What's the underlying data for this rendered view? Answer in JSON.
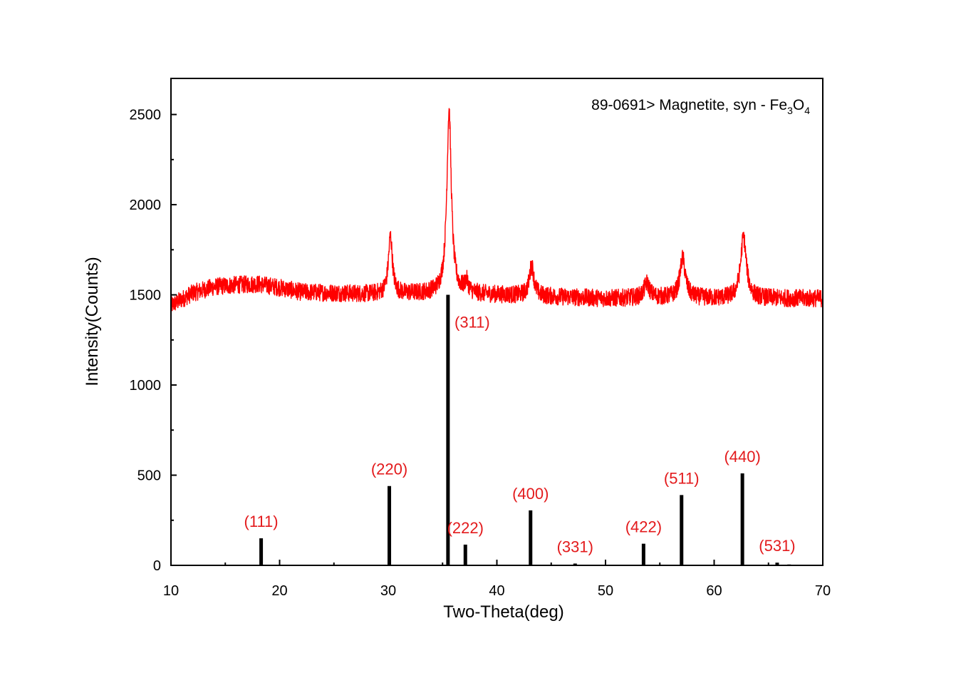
{
  "chart_data": {
    "type": "line",
    "title": "",
    "xlabel": "Two-Theta(deg)",
    "ylabel": "Intensity(Counts)",
    "xlim": [
      10,
      70
    ],
    "ylim": [
      0,
      2600
    ],
    "x_ticks": [
      10,
      20,
      30,
      40,
      50,
      60,
      70
    ],
    "x_tick_labels": [
      "10",
      "20",
      "30",
      "40",
      "50",
      "60",
      "70"
    ],
    "y_ticks": [
      0,
      500,
      1000,
      1500,
      2000,
      2500
    ],
    "y_tick_labels": [
      "0",
      "500",
      "1000",
      "1500",
      "2000",
      "2500"
    ],
    "grid": false,
    "reference": {
      "prefix": "89-0691> Magnetite, syn - Fe",
      "sub1": "3",
      "mid": "O",
      "sub2": "4"
    },
    "series": [
      {
        "color": "#ff0000",
        "style": "noisy-line",
        "baseline": [
          [
            10,
            1440
          ],
          [
            12,
            1510
          ],
          [
            14,
            1545
          ],
          [
            16,
            1555
          ],
          [
            18,
            1560
          ],
          [
            20,
            1540
          ],
          [
            22,
            1515
          ],
          [
            25,
            1510
          ],
          [
            28,
            1505
          ],
          [
            31,
            1505
          ],
          [
            35,
            1510
          ],
          [
            40,
            1500
          ],
          [
            45,
            1490
          ],
          [
            50,
            1480
          ],
          [
            55,
            1485
          ],
          [
            60,
            1480
          ],
          [
            65,
            1480
          ],
          [
            70,
            1480
          ]
        ],
        "peaks": [
          {
            "x": 30.2,
            "height": 320,
            "width": 0.22
          },
          {
            "x": 35.6,
            "height": 1010,
            "width": 0.25
          },
          {
            "x": 37.2,
            "height": 60,
            "width": 0.2
          },
          {
            "x": 43.2,
            "height": 170,
            "width": 0.25
          },
          {
            "x": 53.8,
            "height": 80,
            "width": 0.3
          },
          {
            "x": 57.1,
            "height": 220,
            "width": 0.3
          },
          {
            "x": 62.7,
            "height": 340,
            "width": 0.32
          }
        ],
        "noise_amplitude": 70
      },
      {
        "color": "#000000",
        "style": "stick",
        "name": "89-0691> Magnetite, syn - Fe3O4",
        "sticks": [
          {
            "x": 18.3,
            "y": 150,
            "hkl": "(111)"
          },
          {
            "x": 30.1,
            "y": 440,
            "hkl": "(220)"
          },
          {
            "x": 35.5,
            "y": 1500,
            "hkl": "(311)"
          },
          {
            "x": 37.1,
            "y": 115,
            "hkl": "(222)"
          },
          {
            "x": 43.1,
            "y": 305,
            "hkl": "(400)"
          },
          {
            "x": 47.2,
            "y": 10,
            "hkl": "(331)"
          },
          {
            "x": 53.5,
            "y": 120,
            "hkl": "(422)"
          },
          {
            "x": 57.0,
            "y": 390,
            "hkl": "(511)"
          },
          {
            "x": 62.6,
            "y": 510,
            "hkl": "(440)"
          },
          {
            "x": 65.8,
            "y": 15,
            "hkl": "(531)"
          },
          {
            "x": 66.9,
            "y": 5,
            "hkl": ""
          }
        ]
      }
    ]
  }
}
